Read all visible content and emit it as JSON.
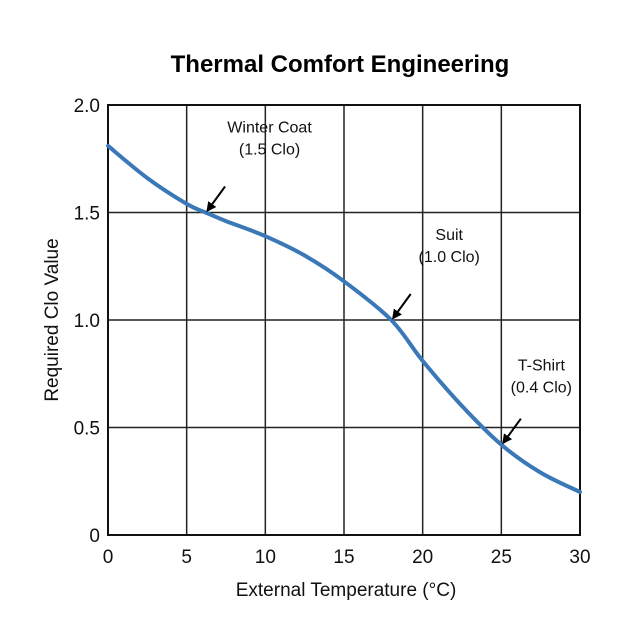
{
  "chart_data": {
    "type": "line",
    "title": "Thermal Comfort Engineering",
    "xlabel": "External Temperature (°C)",
    "ylabel": "Required Clo Value",
    "xlim": [
      0,
      30
    ],
    "ylim": [
      0,
      2.0
    ],
    "xticks": [
      "0",
      "5",
      "10",
      "15",
      "20",
      "25",
      "30"
    ],
    "yticks": [
      "0",
      "0.5",
      "1.0",
      "1.5",
      "2.0"
    ],
    "grid": true,
    "line_color": "#3a78b8",
    "series": [
      {
        "x": [
          0,
          2.5,
          5,
          6.2,
          7.5,
          10,
          12.5,
          15,
          18,
          20,
          22.5,
          25,
          27.5,
          30
        ],
        "y": [
          1.81,
          1.66,
          1.54,
          1.5,
          1.46,
          1.39,
          1.3,
          1.18,
          1.0,
          0.81,
          0.6,
          0.42,
          0.29,
          0.2
        ]
      }
    ],
    "annotations": [
      {
        "line1": "Winter Coat",
        "line2": "(1.5 Clo)",
        "x": 6.2,
        "y": 1.5
      },
      {
        "line1": "Suit",
        "line2": "(1.0 Clo)",
        "x": 18,
        "y": 1.0
      },
      {
        "line1": "T-Shirt",
        "line2": "(0.4 Clo)",
        "x": 25,
        "y": 0.42
      }
    ]
  }
}
